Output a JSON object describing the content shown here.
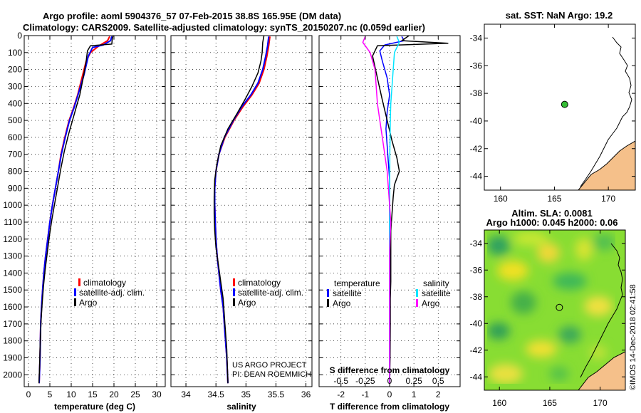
{
  "header": {
    "title_line1": "Argo profile: aoml 5904376_57 07-Feb-2015 38.8S 165.95E (DM data)",
    "title_line2": "Climatology: CARS2009. Satellite-adjusted climatology: synTS_20150207.nc (0.059d earlier)"
  },
  "colors": {
    "climatology": "#ff0000",
    "satellite": "#0000ff",
    "argo": "#000000",
    "sat_salinity": "#00e5ff",
    "argo_salinity": "#ff00ff",
    "land": "#f5c08a",
    "station": "#33bb33"
  },
  "chart_data": [
    {
      "type": "line",
      "name": "temperature",
      "xlabel": "temperature (deg C)",
      "xlim": [
        -1,
        32
      ],
      "ylim": [
        2070,
        0
      ],
      "xticks": [
        "0",
        "5",
        "10",
        "15",
        "20",
        "25",
        "30"
      ],
      "xtick_values": [
        0,
        5,
        10,
        15,
        20,
        25,
        30
      ],
      "yticks": [
        "0",
        "100",
        "200",
        "300",
        "400",
        "500",
        "600",
        "700",
        "800",
        "900",
        "1000",
        "1100",
        "1200",
        "1300",
        "1400",
        "1500",
        "1600",
        "1700",
        "1800",
        "1900",
        "2000"
      ],
      "ytick_values": [
        0,
        100,
        200,
        300,
        400,
        500,
        600,
        700,
        800,
        900,
        1000,
        1100,
        1200,
        1300,
        1400,
        1500,
        1600,
        1700,
        1800,
        1900,
        2000
      ],
      "legend": [
        "climatology",
        "satellite-adj. clim.",
        "Argo"
      ],
      "series": [
        {
          "name": "climatology",
          "color": "#ff0000",
          "width": 2,
          "x": [
            19.0,
            18.5,
            16.5,
            14.5,
            13.5,
            12.5,
            11.5,
            10.5,
            9.5,
            8.5,
            7.6,
            7.0,
            6.3,
            5.6,
            5.0,
            4.5,
            4.0,
            3.6,
            3.3,
            3.05,
            2.85,
            2.7,
            2.5
          ],
          "y": [
            5,
            30,
            60,
            100,
            150,
            250,
            350,
            430,
            500,
            600,
            700,
            800,
            900,
            1000,
            1100,
            1200,
            1300,
            1400,
            1500,
            1600,
            1700,
            1900,
            2050
          ]
        },
        {
          "name": "satellite-adj. clim.",
          "color": "#0000ff",
          "width": 2,
          "x": [
            19.5,
            19.2,
            17.5,
            15.0,
            14.0,
            13.0,
            11.7,
            10.6,
            9.6,
            8.6,
            7.7,
            7.0,
            6.3,
            5.6,
            5.0,
            4.5,
            4.0,
            3.6,
            3.3,
            3.05,
            2.85,
            2.7,
            2.5
          ],
          "y": [
            5,
            30,
            55,
            70,
            120,
            230,
            340,
            430,
            500,
            600,
            700,
            800,
            900,
            1000,
            1100,
            1200,
            1300,
            1400,
            1500,
            1600,
            1700,
            1900,
            2050
          ]
        },
        {
          "name": "Argo",
          "color": "#000000",
          "width": 1.5,
          "x": [
            19.8,
            19.6,
            19.5,
            14.5,
            13.8,
            13.5,
            12.8,
            12.0,
            11.2,
            10.3,
            9.4,
            8.4,
            7.6,
            6.9,
            6.2,
            5.5,
            4.9,
            4.4,
            3.9,
            3.5,
            3.2,
            2.95,
            2.75,
            2.6,
            2.45
          ],
          "y": [
            0,
            20,
            50,
            60,
            90,
            150,
            250,
            350,
            420,
            500,
            580,
            680,
            780,
            880,
            980,
            1080,
            1180,
            1280,
            1380,
            1480,
            1580,
            1680,
            1800,
            1950,
            2050
          ]
        }
      ]
    },
    {
      "type": "line",
      "name": "salinity",
      "xlabel": "salinity",
      "xlim": [
        33.75,
        36.1
      ],
      "ylim": [
        2070,
        0
      ],
      "xticks": [
        "34",
        "34.5",
        "35",
        "35.5",
        "36"
      ],
      "xtick_values": [
        34,
        34.5,
        35,
        35.5,
        36
      ],
      "legend": [
        "climatology",
        "satellite-adj. clim.",
        "Argo"
      ],
      "annotation": [
        "US ARGO PROJECT",
        "PI: DEAN ROEMMICH"
      ],
      "series": [
        {
          "name": "climatology",
          "color": "#ff0000",
          "width": 2,
          "x": [
            35.4,
            35.38,
            35.35,
            35.3,
            35.22,
            35.1,
            34.95,
            34.8,
            34.65,
            34.55,
            34.5,
            34.48,
            34.48,
            34.49,
            34.5,
            34.52,
            34.55,
            34.58,
            34.62,
            34.65,
            34.68,
            34.7
          ],
          "y": [
            5,
            60,
            120,
            200,
            280,
            350,
            420,
            500,
            600,
            700,
            800,
            900,
            1000,
            1100,
            1200,
            1300,
            1400,
            1500,
            1600,
            1750,
            1900,
            2050
          ]
        },
        {
          "name": "satellite-adj. clim.",
          "color": "#0000ff",
          "width": 2,
          "x": [
            35.38,
            35.36,
            35.33,
            35.28,
            35.2,
            35.08,
            34.93,
            34.79,
            34.64,
            34.55,
            34.5,
            34.48,
            34.48,
            34.49,
            34.5,
            34.52,
            34.55,
            34.58,
            34.62,
            34.65,
            34.68,
            34.7
          ],
          "y": [
            5,
            60,
            120,
            200,
            280,
            350,
            420,
            500,
            600,
            700,
            800,
            900,
            1000,
            1100,
            1200,
            1300,
            1400,
            1500,
            1600,
            1750,
            1900,
            2050
          ]
        },
        {
          "name": "Argo",
          "color": "#000000",
          "width": 1.5,
          "x": [
            35.3,
            35.28,
            35.27,
            35.25,
            35.2,
            35.1,
            34.98,
            34.85,
            34.7,
            34.58,
            34.52,
            34.48,
            34.47,
            34.47,
            34.48,
            34.5,
            34.54,
            34.58,
            34.62,
            34.65,
            34.68,
            34.7
          ],
          "y": [
            0,
            40,
            100,
            150,
            220,
            300,
            380,
            460,
            550,
            650,
            750,
            850,
            950,
            1050,
            1150,
            1250,
            1350,
            1450,
            1550,
            1700,
            1850,
            2050
          ]
        }
      ]
    },
    {
      "type": "line",
      "name": "difference",
      "xlabel": "T difference from climatology",
      "xlabel_top": "S difference from climatology",
      "xlim": [
        -2.9,
        2.9
      ],
      "ylim": [
        2070,
        0
      ],
      "xticks": [
        "-2",
        "-1",
        "0",
        "1",
        "2"
      ],
      "xtick_values": [
        -2,
        -1,
        0,
        1,
        2
      ],
      "xticks_top": [
        "-0.5",
        "-0.25",
        "0",
        "0.25",
        "0.5"
      ],
      "xtick_top_values": [
        -2,
        -1,
        0,
        1,
        2
      ],
      "legend_left_title": "temperature",
      "legend_left": [
        "satellite",
        "Argo"
      ],
      "legend_right_title": "salinity",
      "legend_right": [
        "satellite",
        "Argo"
      ],
      "series": [
        {
          "name": "temperature satellite",
          "color": "#0000ff",
          "width": 1.5,
          "x": [
            0.5,
            0.6,
            -0.2,
            -0.4,
            -0.3,
            -0.1,
            0.0,
            -0.1,
            -0.15,
            -0.1,
            -0.05,
            0.0,
            0.0,
            0.0,
            0.0,
            0.0,
            0.0,
            0.0,
            0.0,
            0.0,
            0.0,
            0.0
          ],
          "y": [
            5,
            30,
            55,
            90,
            150,
            250,
            350,
            450,
            550,
            650,
            750,
            850,
            950,
            1050,
            1150,
            1250,
            1350,
            1450,
            1550,
            1700,
            1900,
            2050
          ]
        },
        {
          "name": "temperature Argo",
          "color": "#000000",
          "width": 1.5,
          "x": [
            0.8,
            0.5,
            2.4,
            -0.5,
            -0.7,
            -0.5,
            -0.3,
            -0.1,
            0.1,
            0.3,
            0.4,
            0.2,
            0.15,
            0.1,
            0.05,
            0.05,
            0.05,
            0.05,
            0.03,
            0.03,
            0.02,
            0.0
          ],
          "y": [
            0,
            30,
            45,
            60,
            120,
            250,
            380,
            500,
            620,
            720,
            800,
            880,
            950,
            1050,
            1150,
            1250,
            1350,
            1450,
            1550,
            1700,
            1900,
            2050
          ]
        },
        {
          "name": "salinity satellite",
          "color": "#00e5ff",
          "width": 1.5,
          "x": [
            0.3,
            0.4,
            0.2,
            0.15,
            0.1,
            0.05,
            0.03,
            0.02,
            0.01,
            0.01,
            0.0,
            0.0,
            0.0,
            0.0,
            0.0,
            0.0,
            0.0,
            0.0,
            0.0,
            0.0
          ],
          "y": [
            5,
            40,
            100,
            200,
            300,
            400,
            500,
            600,
            700,
            800,
            900,
            1000,
            1100,
            1200,
            1300,
            1400,
            1500,
            1700,
            1900,
            2050
          ]
        },
        {
          "name": "salinity Argo",
          "color": "#ff00ff",
          "width": 1.5,
          "x": [
            -1.0,
            -1.1,
            -0.8,
            -0.6,
            -0.55,
            -0.5,
            -0.4,
            -0.3,
            -0.2,
            -0.1,
            -0.05,
            0.0,
            0.05,
            0.02,
            0.0,
            0.0,
            0.0,
            0.0,
            0.0,
            0.0
          ],
          "y": [
            5,
            40,
            100,
            200,
            300,
            400,
            500,
            600,
            700,
            800,
            900,
            1000,
            1100,
            1200,
            1300,
            1400,
            1500,
            1700,
            1900,
            2050
          ]
        }
      ]
    },
    {
      "type": "scatter",
      "name": "sst-map",
      "title": "sat. SST: NaN Argo: 19.2",
      "xlim": [
        158.5,
        172.5
      ],
      "ylim": [
        -45,
        -33
      ],
      "xticks": [
        "160",
        "165",
        "170"
      ],
      "xtick_values": [
        160,
        165,
        170
      ],
      "yticks": [
        "-34",
        "-36",
        "-38",
        "-40",
        "-42",
        "-44"
      ],
      "ytick_values": [
        -34,
        -36,
        -38,
        -40,
        -42,
        -44
      ],
      "station": {
        "lon": 165.95,
        "lat": -38.8
      }
    },
    {
      "type": "heatmap",
      "name": "sla-map",
      "title_line1": "Altim. SLA: 0.0081",
      "title_line2": "Argo h1000: 0.045 h2000: 0.06",
      "xlim": [
        158.5,
        172.5
      ],
      "ylim": [
        -45,
        -33
      ],
      "xticks": [
        "160",
        "165",
        "170"
      ],
      "xtick_values": [
        160,
        165,
        170
      ],
      "yticks": [
        "-34",
        "-36",
        "-38",
        "-40",
        "-42",
        "-44"
      ],
      "ytick_values": [
        -34,
        -36,
        -38,
        -40,
        -42,
        -44
      ],
      "station": {
        "lon": 165.95,
        "lat": -38.8
      }
    }
  ],
  "credit": "©IMOS 14-Dec-2018 02:41:58"
}
